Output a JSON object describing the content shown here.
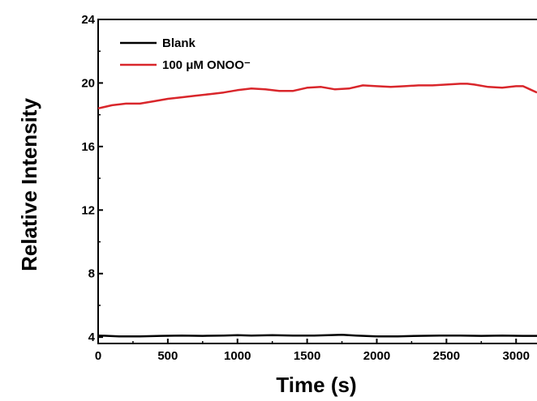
{
  "chart_data": {
    "type": "line",
    "xlabel": "Time (s)",
    "ylabel": "Relative Intensity",
    "xlim": [
      0,
      3150
    ],
    "ylim": [
      3.6,
      24
    ],
    "xticks": [
      0,
      500,
      1000,
      1500,
      2000,
      2500,
      3000
    ],
    "yticks": [
      4,
      8,
      12,
      16,
      20,
      24
    ],
    "grid": false,
    "legend_position": "top-left",
    "series": [
      {
        "name": "Blank",
        "color": "#000000",
        "x": [
          0,
          150,
          300,
          450,
          600,
          750,
          900,
          1000,
          1100,
          1250,
          1400,
          1550,
          1650,
          1750,
          1850,
          2000,
          2150,
          2300,
          2450,
          2600,
          2750,
          2900,
          3050,
          3150
        ],
        "y": [
          4.1,
          4.05,
          4.05,
          4.08,
          4.1,
          4.08,
          4.1,
          4.12,
          4.1,
          4.12,
          4.1,
          4.1,
          4.12,
          4.15,
          4.1,
          4.05,
          4.05,
          4.08,
          4.1,
          4.1,
          4.08,
          4.1,
          4.08,
          4.08
        ]
      },
      {
        "name": "100 μM ONOO⁻",
        "color": "#d9262b",
        "x": [
          0,
          100,
          200,
          300,
          400,
          500,
          600,
          700,
          800,
          900,
          1000,
          1100,
          1200,
          1300,
          1400,
          1500,
          1600,
          1700,
          1800,
          1900,
          2000,
          2100,
          2200,
          2300,
          2400,
          2500,
          2600,
          2650,
          2700,
          2800,
          2900,
          3000,
          3050,
          3100,
          3150
        ],
        "y": [
          18.4,
          18.6,
          18.7,
          18.7,
          18.85,
          19.0,
          19.1,
          19.2,
          19.3,
          19.4,
          19.55,
          19.65,
          19.6,
          19.5,
          19.5,
          19.7,
          19.75,
          19.6,
          19.65,
          19.85,
          19.8,
          19.75,
          19.8,
          19.85,
          19.85,
          19.9,
          19.95,
          19.95,
          19.9,
          19.75,
          19.7,
          19.8,
          19.8,
          19.6,
          19.4
        ]
      }
    ]
  }
}
